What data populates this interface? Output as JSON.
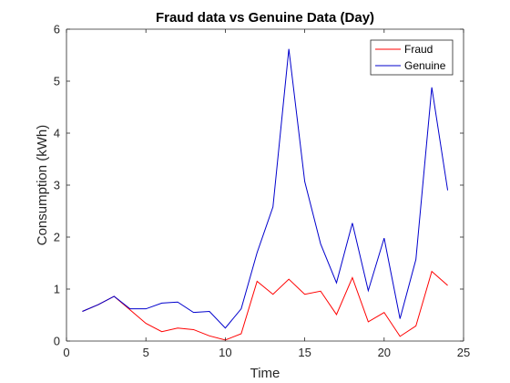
{
  "chart_data": {
    "type": "line",
    "title": "Fraud data vs Genuine Data (Day)",
    "xlabel": "Time",
    "ylabel": "Consumption (kWh)",
    "xlim": [
      0,
      25
    ],
    "ylim": [
      0,
      6
    ],
    "xticks": [
      0,
      5,
      10,
      15,
      20,
      25
    ],
    "yticks": [
      0,
      1,
      2,
      3,
      4,
      5,
      6
    ],
    "grid": false,
    "legend_position": "top-right",
    "x": [
      1,
      2,
      3,
      4,
      5,
      6,
      7,
      8,
      9,
      10,
      11,
      12,
      13,
      14,
      15,
      16,
      17,
      18,
      19,
      20,
      21,
      22,
      23,
      24
    ],
    "series": [
      {
        "name": "Fraud",
        "color": "#ff0000",
        "values": [
          0.57,
          0.7,
          0.86,
          0.6,
          0.34,
          0.18,
          0.25,
          0.22,
          0.1,
          0.02,
          0.14,
          1.15,
          0.9,
          1.19,
          0.9,
          0.96,
          0.51,
          1.22,
          0.37,
          0.55,
          0.09,
          0.29,
          1.34,
          1.07
        ]
      },
      {
        "name": "Genuine",
        "color": "#0000cd",
        "values": [
          0.57,
          0.7,
          0.86,
          0.62,
          0.62,
          0.73,
          0.75,
          0.55,
          0.57,
          0.25,
          0.62,
          1.7,
          2.58,
          5.62,
          3.07,
          1.87,
          1.12,
          2.27,
          0.97,
          1.98,
          0.43,
          1.57,
          4.88,
          2.9
        ]
      }
    ]
  }
}
